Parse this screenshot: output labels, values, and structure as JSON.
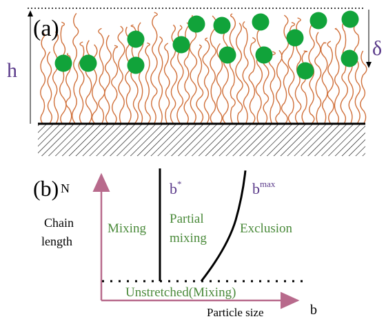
{
  "panel_a": {
    "label": "(a)",
    "height_symbol": "h",
    "penetration_symbol": "δ"
  },
  "panel_b": {
    "label": "(b)",
    "y_axis_symbol": "N",
    "y_axis_title": [
      "Chain",
      "length"
    ],
    "x_axis_title": "Particle size",
    "x_axis_symbol": "b",
    "regions": {
      "mixing": "Mixing",
      "partial_mixing": [
        "Partial",
        "mixing"
      ],
      "exclusion": "Exclusion",
      "unstretched": "Unstretched(Mixing)"
    },
    "boundaries": {
      "b_star": {
        "base": "b",
        "sup": "*"
      },
      "b_max": {
        "base": "b",
        "sup": "max"
      }
    }
  }
}
